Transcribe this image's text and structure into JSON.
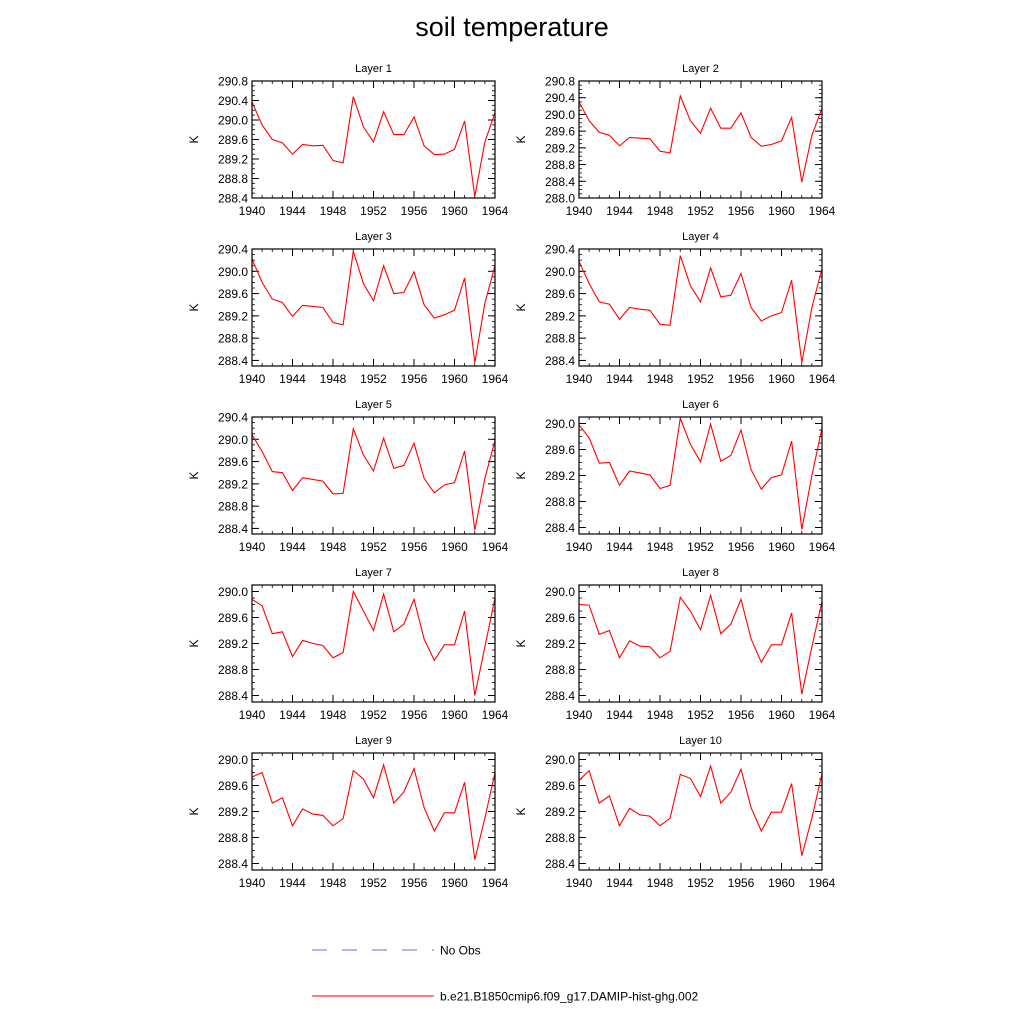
{
  "figure": {
    "title": "soil temperature",
    "legend": {
      "items": [
        {
          "label": "No Obs",
          "color": "#6f6fd6",
          "dash": true
        },
        {
          "label": "b.e21.B1850cmip6.f09_g17.DAMIP-hist-ghg.002",
          "color": "#ff0000",
          "dash": false
        }
      ]
    }
  },
  "chart_data": [
    {
      "type": "line",
      "title": "Layer 1",
      "ylabel": "K",
      "xlim": [
        1940,
        1964
      ],
      "ylim": [
        288.4,
        290.8
      ],
      "xticks": [
        1940,
        1944,
        1948,
        1952,
        1956,
        1960,
        1964
      ],
      "yticks": [
        288.4,
        288.8,
        289.2,
        289.6,
        290.0,
        290.4,
        290.8
      ],
      "x": [
        1940,
        1941,
        1942,
        1943,
        1944,
        1945,
        1946,
        1947,
        1948,
        1949,
        1950,
        1951,
        1952,
        1953,
        1954,
        1955,
        1956,
        1957,
        1958,
        1959,
        1960,
        1961,
        1962,
        1963,
        1964
      ],
      "series": [
        {
          "name": "b.e21.B1850cmip6.f09_g17.DAMIP-hist-ghg.002",
          "color": "#ff0000",
          "values": [
            290.37,
            289.9,
            289.6,
            289.53,
            289.3,
            289.5,
            289.47,
            289.48,
            289.17,
            289.12,
            290.48,
            289.86,
            289.55,
            290.17,
            289.7,
            289.7,
            290.06,
            289.47,
            289.29,
            289.3,
            289.4,
            289.98,
            288.43,
            289.55,
            290.15
          ]
        }
      ]
    },
    {
      "type": "line",
      "title": "Layer 2",
      "ylabel": "K",
      "xlim": [
        1940,
        1964
      ],
      "ylim": [
        288.0,
        290.8
      ],
      "xticks": [
        1940,
        1944,
        1948,
        1952,
        1956,
        1960,
        1964
      ],
      "yticks": [
        288.0,
        288.4,
        288.8,
        289.2,
        289.6,
        290.0,
        290.4,
        290.8
      ],
      "x": [
        1940,
        1941,
        1942,
        1943,
        1944,
        1945,
        1946,
        1947,
        1948,
        1949,
        1950,
        1951,
        1952,
        1953,
        1954,
        1955,
        1956,
        1957,
        1958,
        1959,
        1960,
        1961,
        1962,
        1963,
        1964
      ],
      "series": [
        {
          "name": "b.e21.B1850cmip6.f09_g17.DAMIP-hist-ghg.002",
          "color": "#ff0000",
          "values": [
            290.3,
            289.85,
            289.57,
            289.5,
            289.25,
            289.45,
            289.43,
            289.42,
            289.12,
            289.08,
            290.44,
            289.85,
            289.55,
            290.15,
            289.67,
            289.67,
            290.04,
            289.45,
            289.24,
            289.28,
            289.37,
            289.93,
            288.38,
            289.5,
            290.15
          ]
        }
      ]
    },
    {
      "type": "line",
      "title": "Layer 3",
      "ylabel": "K",
      "xlim": [
        1940,
        1964
      ],
      "ylim": [
        288.3,
        290.4
      ],
      "xticks": [
        1940,
        1944,
        1948,
        1952,
        1956,
        1960,
        1964
      ],
      "yticks": [
        288.4,
        288.8,
        289.2,
        289.6,
        290.0,
        290.4
      ],
      "x": [
        1940,
        1941,
        1942,
        1943,
        1944,
        1945,
        1946,
        1947,
        1948,
        1949,
        1950,
        1951,
        1952,
        1953,
        1954,
        1955,
        1956,
        1957,
        1958,
        1959,
        1960,
        1961,
        1962,
        1963,
        1964
      ],
      "series": [
        {
          "name": "b.e21.B1850cmip6.f09_g17.DAMIP-hist-ghg.002",
          "color": "#ff0000",
          "values": [
            290.22,
            289.8,
            289.5,
            289.44,
            289.19,
            289.39,
            289.37,
            289.35,
            289.08,
            289.04,
            290.36,
            289.78,
            289.47,
            290.1,
            289.6,
            289.62,
            289.99,
            289.4,
            289.16,
            289.22,
            289.3,
            289.88,
            288.36,
            289.43,
            290.1
          ]
        }
      ]
    },
    {
      "type": "line",
      "title": "Layer 4",
      "ylabel": "K",
      "xlim": [
        1940,
        1964
      ],
      "ylim": [
        288.3,
        290.4
      ],
      "xticks": [
        1940,
        1944,
        1948,
        1952,
        1956,
        1960,
        1964
      ],
      "yticks": [
        288.4,
        288.8,
        289.2,
        289.6,
        290.0,
        290.4
      ],
      "x": [
        1940,
        1941,
        1942,
        1943,
        1944,
        1945,
        1946,
        1947,
        1948,
        1949,
        1950,
        1951,
        1952,
        1953,
        1954,
        1955,
        1956,
        1957,
        1958,
        1959,
        1960,
        1961,
        1962,
        1963,
        1964
      ],
      "series": [
        {
          "name": "b.e21.B1850cmip6.f09_g17.DAMIP-hist-ghg.002",
          "color": "#ff0000",
          "values": [
            290.18,
            289.78,
            289.45,
            289.41,
            289.14,
            289.35,
            289.32,
            289.3,
            289.05,
            289.03,
            290.28,
            289.74,
            289.45,
            290.06,
            289.54,
            289.57,
            289.96,
            289.35,
            289.11,
            289.2,
            289.26,
            289.84,
            288.36,
            289.35,
            290.05
          ]
        }
      ]
    },
    {
      "type": "line",
      "title": "Layer 5",
      "ylabel": "K",
      "xlim": [
        1940,
        1964
      ],
      "ylim": [
        288.3,
        290.4
      ],
      "xticks": [
        1940,
        1944,
        1948,
        1952,
        1956,
        1960,
        1964
      ],
      "yticks": [
        288.4,
        288.8,
        289.2,
        289.6,
        290.0,
        290.4
      ],
      "x": [
        1940,
        1941,
        1942,
        1943,
        1944,
        1945,
        1946,
        1947,
        1948,
        1949,
        1950,
        1951,
        1952,
        1953,
        1954,
        1955,
        1956,
        1957,
        1958,
        1959,
        1960,
        1961,
        1962,
        1963,
        1964
      ],
      "series": [
        {
          "name": "b.e21.B1850cmip6.f09_g17.DAMIP-hist-ghg.002",
          "color": "#ff0000",
          "values": [
            290.08,
            289.78,
            289.42,
            289.4,
            289.08,
            289.31,
            289.28,
            289.25,
            289.02,
            289.03,
            290.19,
            289.72,
            289.43,
            290.02,
            289.48,
            289.53,
            289.93,
            289.3,
            289.04,
            289.18,
            289.22,
            289.79,
            288.37,
            289.3,
            289.98
          ]
        }
      ]
    },
    {
      "type": "line",
      "title": "Layer 6",
      "ylabel": "K",
      "xlim": [
        1940,
        1964
      ],
      "ylim": [
        288.3,
        290.1
      ],
      "xticks": [
        1940,
        1944,
        1948,
        1952,
        1956,
        1960,
        1964
      ],
      "yticks": [
        288.4,
        288.8,
        289.2,
        289.6,
        290.0
      ],
      "x": [
        1940,
        1941,
        1942,
        1943,
        1944,
        1945,
        1946,
        1947,
        1948,
        1949,
        1950,
        1951,
        1952,
        1953,
        1954,
        1955,
        1956,
        1957,
        1958,
        1959,
        1960,
        1961,
        1962,
        1963,
        1964
      ],
      "series": [
        {
          "name": "b.e21.B1850cmip6.f09_g17.DAMIP-hist-ghg.002",
          "color": "#ff0000",
          "values": [
            289.98,
            289.78,
            289.39,
            289.4,
            289.05,
            289.27,
            289.24,
            289.21,
            289.0,
            289.05,
            290.08,
            289.68,
            289.41,
            289.99,
            289.42,
            289.51,
            289.9,
            289.29,
            288.99,
            289.17,
            289.21,
            289.73,
            288.37,
            289.2,
            289.93
          ]
        }
      ]
    },
    {
      "type": "line",
      "title": "Layer 7",
      "ylabel": "K",
      "xlim": [
        1940,
        1964
      ],
      "ylim": [
        288.3,
        290.1
      ],
      "xticks": [
        1940,
        1944,
        1948,
        1952,
        1956,
        1960,
        1964
      ],
      "yticks": [
        288.4,
        288.8,
        289.2,
        289.6,
        290.0
      ],
      "x": [
        1940,
        1941,
        1942,
        1943,
        1944,
        1945,
        1946,
        1947,
        1948,
        1949,
        1950,
        1951,
        1952,
        1953,
        1954,
        1955,
        1956,
        1957,
        1958,
        1959,
        1960,
        1961,
        1962,
        1963,
        1964
      ],
      "series": [
        {
          "name": "b.e21.B1850cmip6.f09_g17.DAMIP-hist-ghg.002",
          "color": "#ff0000",
          "values": [
            289.88,
            289.78,
            289.35,
            289.38,
            289.0,
            289.25,
            289.2,
            289.17,
            288.98,
            289.06,
            290.0,
            289.7,
            289.4,
            289.96,
            289.38,
            289.5,
            289.88,
            289.27,
            288.94,
            289.18,
            289.18,
            289.7,
            288.4,
            289.15,
            289.9
          ]
        }
      ]
    },
    {
      "type": "line",
      "title": "Layer 8",
      "ylabel": "K",
      "xlim": [
        1940,
        1964
      ],
      "ylim": [
        288.3,
        290.1
      ],
      "xticks": [
        1940,
        1944,
        1948,
        1952,
        1956,
        1960,
        1964
      ],
      "yticks": [
        288.4,
        288.8,
        289.2,
        289.6,
        290.0
      ],
      "x": [
        1940,
        1941,
        1942,
        1943,
        1944,
        1945,
        1946,
        1947,
        1948,
        1949,
        1950,
        1951,
        1952,
        1953,
        1954,
        1955,
        1956,
        1957,
        1958,
        1959,
        1960,
        1961,
        1962,
        1963,
        1964
      ],
      "series": [
        {
          "name": "b.e21.B1850cmip6.f09_g17.DAMIP-hist-ghg.002",
          "color": "#ff0000",
          "values": [
            289.8,
            289.79,
            289.34,
            289.4,
            288.98,
            289.24,
            289.16,
            289.15,
            288.98,
            289.08,
            289.91,
            289.7,
            289.41,
            289.94,
            289.35,
            289.5,
            289.88,
            289.27,
            288.91,
            289.18,
            289.18,
            289.67,
            288.42,
            289.15,
            289.85
          ]
        }
      ]
    },
    {
      "type": "line",
      "title": "Layer 9",
      "ylabel": "K",
      "xlim": [
        1940,
        1964
      ],
      "ylim": [
        288.3,
        290.1
      ],
      "xticks": [
        1940,
        1944,
        1948,
        1952,
        1956,
        1960,
        1964
      ],
      "yticks": [
        288.4,
        288.8,
        289.2,
        289.6,
        290.0
      ],
      "x": [
        1940,
        1941,
        1942,
        1943,
        1944,
        1945,
        1946,
        1947,
        1948,
        1949,
        1950,
        1951,
        1952,
        1953,
        1954,
        1955,
        1956,
        1957,
        1958,
        1959,
        1960,
        1961,
        1962,
        1963,
        1964
      ],
      "series": [
        {
          "name": "b.e21.B1850cmip6.f09_g17.DAMIP-hist-ghg.002",
          "color": "#ff0000",
          "values": [
            289.73,
            289.8,
            289.33,
            289.41,
            288.98,
            289.24,
            289.16,
            289.14,
            288.98,
            289.09,
            289.83,
            289.7,
            289.41,
            289.92,
            289.33,
            289.5,
            289.86,
            289.26,
            288.9,
            289.18,
            289.18,
            289.65,
            288.46,
            289.1,
            289.8
          ]
        }
      ]
    },
    {
      "type": "line",
      "title": "Layer 10",
      "ylabel": "K",
      "xlim": [
        1940,
        1964
      ],
      "ylim": [
        288.3,
        290.1
      ],
      "xticks": [
        1940,
        1944,
        1948,
        1952,
        1956,
        1960,
        1964
      ],
      "yticks": [
        288.4,
        288.8,
        289.2,
        289.6,
        290.0
      ],
      "x": [
        1940,
        1941,
        1942,
        1943,
        1944,
        1945,
        1946,
        1947,
        1948,
        1949,
        1950,
        1951,
        1952,
        1953,
        1954,
        1955,
        1956,
        1957,
        1958,
        1959,
        1960,
        1961,
        1962,
        1963,
        1964
      ],
      "series": [
        {
          "name": "b.e21.B1850cmip6.f09_g17.DAMIP-hist-ghg.002",
          "color": "#ff0000",
          "values": [
            289.68,
            289.83,
            289.33,
            289.44,
            288.98,
            289.25,
            289.15,
            289.13,
            288.98,
            289.1,
            289.77,
            289.71,
            289.43,
            289.9,
            289.33,
            289.5,
            289.85,
            289.26,
            288.9,
            289.19,
            289.19,
            289.63,
            288.52,
            289.1,
            289.78
          ]
        }
      ]
    }
  ]
}
